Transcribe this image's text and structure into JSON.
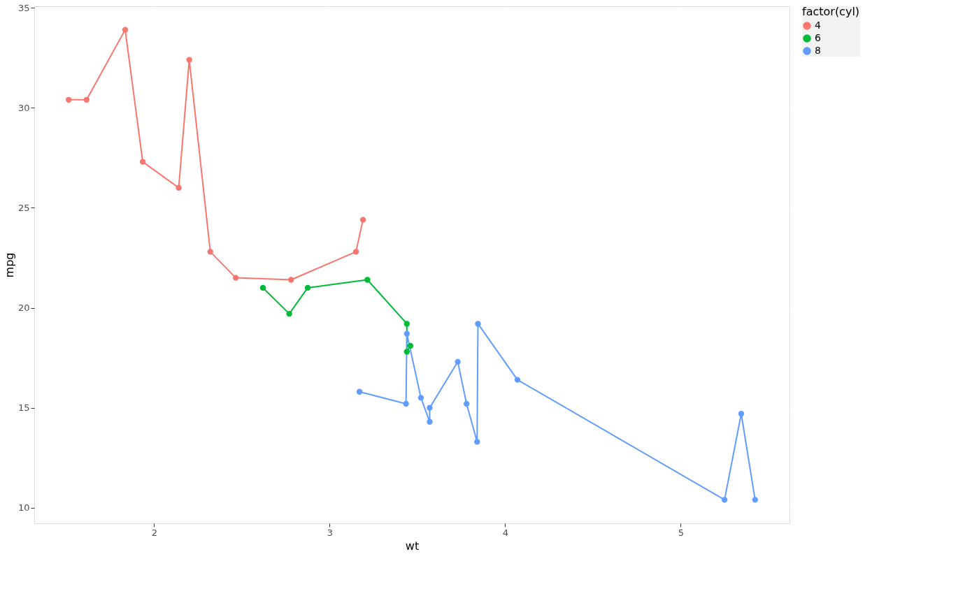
{
  "chart_data": {
    "type": "line",
    "xlabel": "wt",
    "ylabel": "mpg",
    "legend_title": "factor(cyl)",
    "legend": "right",
    "grid": true,
    "marker": "circle",
    "line_style": "solid",
    "xlim": [
      1.317,
      5.62
    ],
    "xticks": [
      2,
      3,
      4,
      5
    ],
    "ylim": [
      9.225,
      35.075
    ],
    "yticks": [
      10,
      15,
      20,
      25,
      30,
      35
    ],
    "series": [
      {
        "name": "4",
        "color": "#f8766d",
        "x": [
          1.513,
          1.615,
          1.835,
          1.935,
          2.14,
          2.2,
          2.32,
          2.465,
          2.78,
          3.15,
          3.19
        ],
        "values": [
          30.4,
          30.4,
          33.9,
          27.3,
          26.0,
          32.4,
          22.8,
          21.5,
          21.4,
          22.8,
          24.4
        ]
      },
      {
        "name": "6",
        "color": "#00ba38",
        "x": [
          2.62,
          2.77,
          2.875,
          3.215,
          3.44,
          3.44,
          3.46
        ],
        "values": [
          21.0,
          19.7,
          21.0,
          21.4,
          19.2,
          17.8,
          18.1
        ]
      },
      {
        "name": "8",
        "color": "#619cff",
        "x": [
          3.17,
          3.435,
          3.44,
          3.52,
          3.57,
          3.57,
          3.73,
          3.78,
          3.84,
          3.845,
          4.07,
          5.25,
          5.345,
          5.424
        ],
        "values": [
          15.8,
          15.2,
          18.7,
          15.5,
          14.3,
          15.0,
          17.3,
          15.2,
          13.3,
          19.2,
          16.4,
          10.4,
          14.7,
          10.4
        ]
      }
    ]
  }
}
